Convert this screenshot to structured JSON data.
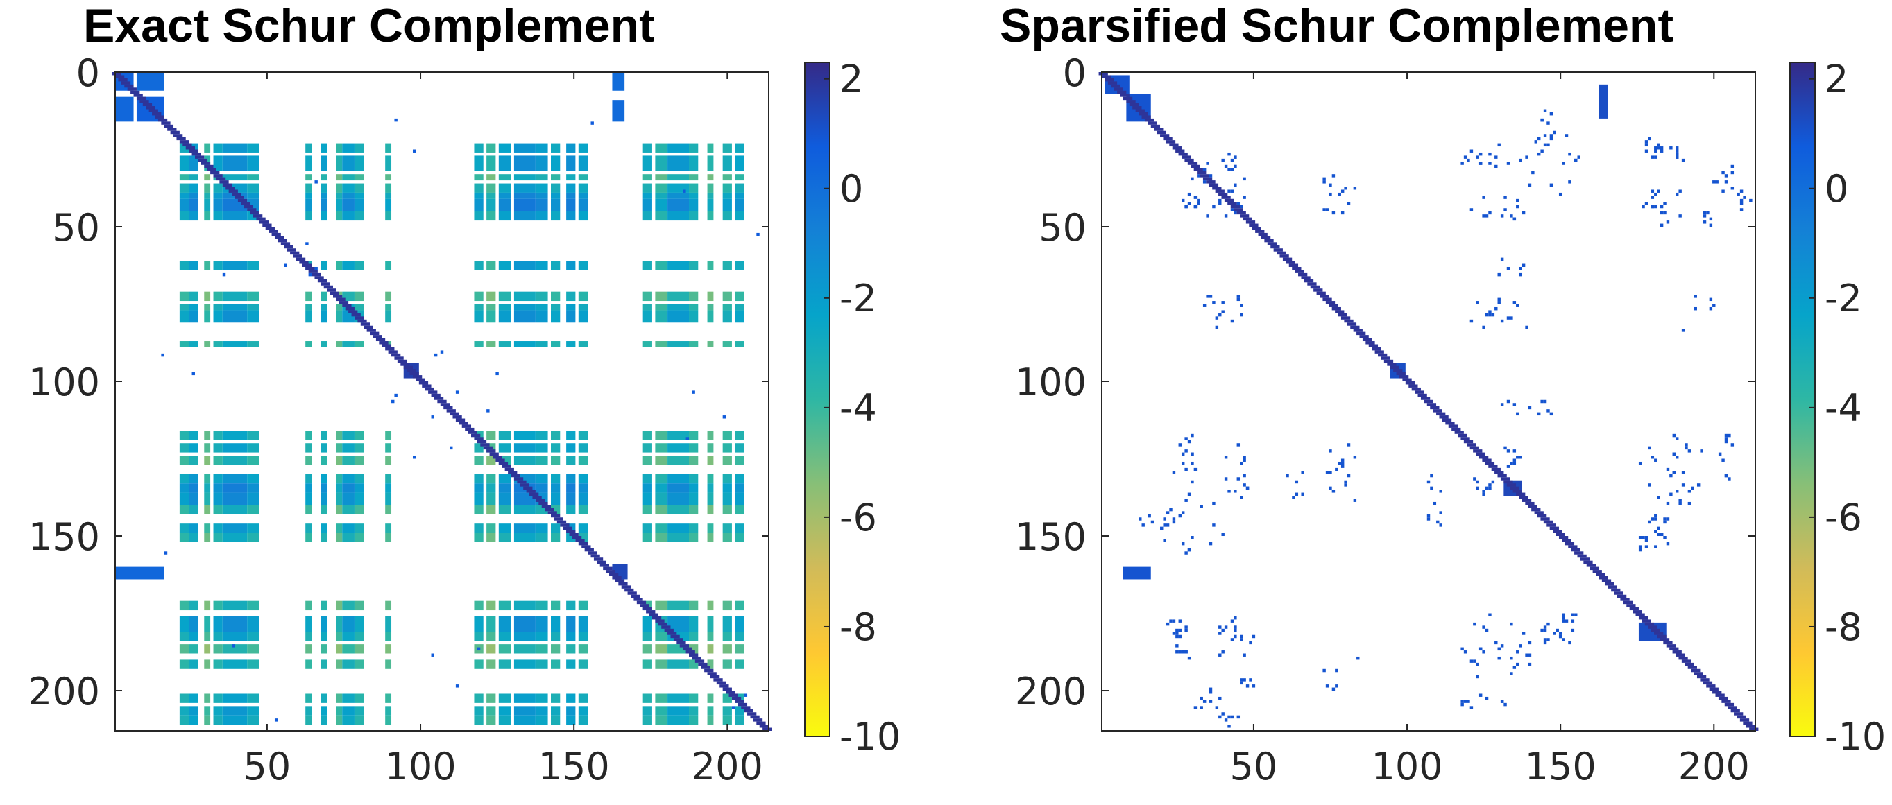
{
  "chart_data": [
    {
      "type": "heatmap",
      "title": "Exact Schur Complement",
      "matrix_size": 213,
      "x_ticks": [
        50,
        100,
        150,
        200
      ],
      "y_ticks": [
        0,
        50,
        100,
        150,
        200
      ],
      "xlim": [
        1,
        213
      ],
      "ylim": [
        0,
        213
      ],
      "grid": false,
      "colormap": "parula",
      "colorbar": {
        "ticks": [
          2,
          0,
          -2,
          -4,
          -6,
          -8,
          -10
        ],
        "range": [
          -10,
          2.3
        ]
      },
      "diagonal": {
        "from": 1,
        "to": 213,
        "value": 2.0
      },
      "blocks": [
        {
          "rows": [
            1,
            6
          ],
          "cols": [
            1,
            6
          ],
          "value": 0.5
        },
        {
          "rows": [
            1,
            6
          ],
          "cols": [
            8,
            16
          ],
          "value": 0.2
        },
        {
          "rows": [
            9,
            16
          ],
          "cols": [
            1,
            6
          ],
          "value": 0.3
        },
        {
          "rows": [
            9,
            16
          ],
          "cols": [
            8,
            16
          ],
          "value": 0.6
        },
        {
          "rows": [
            1,
            6
          ],
          "cols": [
            163,
            166
          ],
          "value": 0.1
        },
        {
          "rows": [
            10,
            16
          ],
          "cols": [
            163,
            166
          ],
          "value": 0.2
        },
        {
          "rows": [
            161,
            164
          ],
          "cols": [
            1,
            16
          ],
          "value": 0.3
        },
        {
          "rows": [
            95,
            99
          ],
          "cols": [
            95,
            99
          ],
          "value": 1.6
        },
        {
          "rows": [
            160,
            164
          ],
          "cols": [
            163,
            167
          ],
          "value": 1.4
        }
      ],
      "cross_pattern": {
        "row_bands": [
          [
            24,
            26,
            -2.6
          ],
          [
            28,
            32,
            -1.8
          ],
          [
            34,
            35,
            -4.8
          ],
          [
            37,
            39,
            -3.2
          ],
          [
            40,
            41,
            -1.2
          ],
          [
            42,
            45,
            -0.2
          ],
          [
            46,
            48,
            -2.4
          ],
          [
            62,
            64,
            -2.8
          ],
          [
            72,
            74,
            -5.0
          ],
          [
            76,
            77,
            -3.4
          ],
          [
            78,
            81,
            -2.0
          ],
          [
            88,
            89,
            -4.2
          ],
          [
            117,
            119,
            -4.0
          ],
          [
            121,
            123,
            -3.4
          ],
          [
            125,
            127,
            -5.2
          ],
          [
            131,
            133,
            -2.4
          ],
          [
            134,
            136,
            -0.5
          ],
          [
            137,
            140,
            -1.3
          ],
          [
            141,
            143,
            -4.8
          ],
          [
            147,
            149,
            -2.6
          ],
          [
            150,
            152,
            -4.4
          ],
          [
            172,
            174,
            -5.0
          ],
          [
            177,
            181,
            -1.6
          ],
          [
            182,
            184,
            -3.2
          ],
          [
            186,
            188,
            -6.0
          ],
          [
            191,
            193,
            -4.4
          ],
          [
            202,
            204,
            -3.6
          ],
          [
            206,
            208,
            -2.6
          ],
          [
            209,
            211,
            -3.4
          ]
        ],
        "col_bands": [
          [
            22,
            24,
            -3.0
          ],
          [
            25,
            27,
            -1.2
          ],
          [
            30,
            31,
            -5.4
          ],
          [
            33,
            35,
            -2.6
          ],
          [
            36,
            43,
            -0.8
          ],
          [
            44,
            47,
            -2.4
          ],
          [
            63,
            64,
            -3.4
          ],
          [
            68,
            69,
            -2.2
          ],
          [
            73,
            74,
            -5.0
          ],
          [
            75,
            78,
            -1.7
          ],
          [
            79,
            81,
            -3.6
          ],
          [
            89,
            90,
            -4.4
          ],
          [
            118,
            120,
            -3.2
          ],
          [
            122,
            124,
            -5.4
          ],
          [
            126,
            129,
            -2.0
          ],
          [
            131,
            137,
            -0.6
          ],
          [
            138,
            141,
            -1.6
          ],
          [
            143,
            145,
            -2.8
          ],
          [
            148,
            150,
            -0.9
          ],
          [
            152,
            154,
            -2.2
          ],
          [
            173,
            175,
            -3.2
          ],
          [
            177,
            180,
            -4.6
          ],
          [
            181,
            187,
            -1.7
          ],
          [
            188,
            190,
            -3.8
          ],
          [
            194,
            195,
            -5.2
          ],
          [
            199,
            201,
            -4.0
          ],
          [
            203,
            205,
            -2.8
          ]
        ]
      }
    },
    {
      "type": "heatmap",
      "title": "Sparsified Schur Complement",
      "matrix_size": 213,
      "x_ticks": [
        50,
        100,
        150,
        200
      ],
      "y_ticks": [
        0,
        50,
        100,
        150,
        200
      ],
      "xlim": [
        1,
        213
      ],
      "ylim": [
        0,
        213
      ],
      "grid": false,
      "colormap": "parula",
      "colorbar": {
        "ticks": [
          2,
          0,
          -2,
          -4,
          -6,
          -8,
          -10
        ],
        "range": [
          -10,
          2.3
        ]
      },
      "diagonal": {
        "from": 1,
        "to": 213,
        "value": 2.0
      },
      "blocks": [
        {
          "rows": [
            2,
            7
          ],
          "cols": [
            2,
            9
          ],
          "value": 1.0
        },
        {
          "rows": [
            8,
            16
          ],
          "cols": [
            9,
            16
          ],
          "value": 1.0
        },
        {
          "rows": [
            95,
            99
          ],
          "cols": [
            95,
            99
          ],
          "value": 1.2
        },
        {
          "rows": [
            133,
            137
          ],
          "cols": [
            132,
            137
          ],
          "value": 1.4
        },
        {
          "rows": [
            179,
            184
          ],
          "cols": [
            176,
            184
          ],
          "value": 1.2
        },
        {
          "rows": [
            161,
            164
          ],
          "cols": [
            8,
            16
          ],
          "value": 1.0
        },
        {
          "rows": [
            5,
            15
          ],
          "cols": [
            163,
            165
          ],
          "value": 1.2
        }
      ],
      "cross_pattern": null,
      "scatter_value": 1.0
    }
  ],
  "colors": {
    "parula": [
      "#352a87",
      "#0f5cdd",
      "#1481d6",
      "#06a4ca",
      "#2eb7a4",
      "#87bf77",
      "#d1bb59",
      "#fec832",
      "#f9fb0e"
    ]
  }
}
